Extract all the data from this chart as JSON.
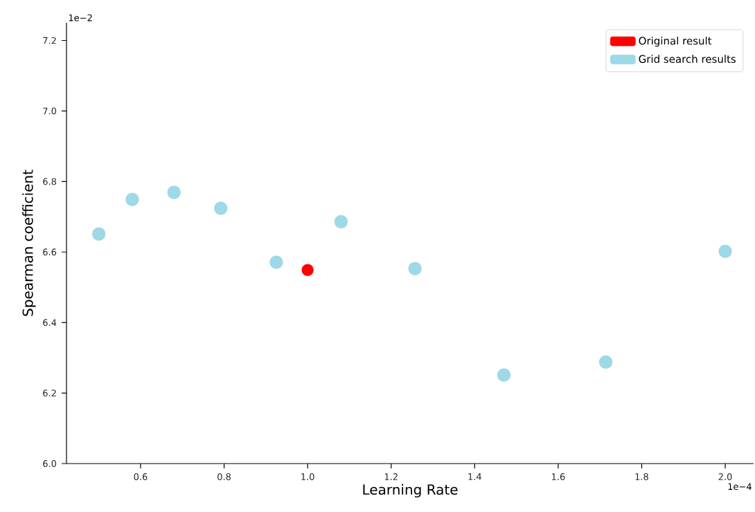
{
  "chart_data": {
    "type": "scatter",
    "xlabel": "Learning Rate",
    "ylabel": "Spearman coefficient",
    "series": [
      {
        "name": "Original result",
        "color": "#ff0000",
        "x": [
          1.0
        ],
        "values": [
          6.549
        ]
      },
      {
        "name": "Grid search results",
        "color": "#9dd9e6",
        "x": [
          0.5,
          0.58,
          0.68,
          0.792,
          0.925,
          1.08,
          1.257,
          1.47,
          1.714,
          2.0
        ],
        "values": [
          6.651,
          6.749,
          6.769,
          6.724,
          6.571,
          6.686,
          6.553,
          6.251,
          6.288,
          6.602
        ]
      }
    ],
    "xlim": [
      0.4226,
      2.068
    ],
    "ylim": [
      6.0,
      7.25
    ],
    "xticks": [
      0.6,
      0.8,
      {
        "value": 1,
        "label": "1.0"
      },
      1.2,
      1.4,
      1.6,
      1.8,
      {
        "value": 2,
        "label": "2.0"
      }
    ],
    "yticks": [
      {
        "value": 6,
        "label": "6.0"
      },
      6.2,
      6.4,
      6.6,
      6.8,
      {
        "value": 7,
        "label": "7.0"
      },
      7.2
    ],
    "annotations": [
      "1e−2",
      "1e−4"
    ],
    "legend": "top right",
    "grid": false
  }
}
